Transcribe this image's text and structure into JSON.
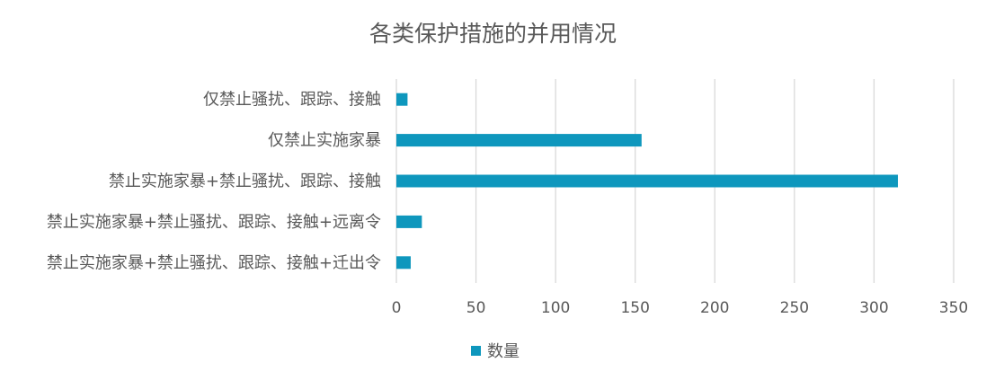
{
  "chart_data": {
    "type": "bar",
    "orientation": "horizontal",
    "title": "各类保护措施的并用情况",
    "categories": [
      "仅禁止骚扰、跟踪、接触",
      "仅禁止实施家暴",
      "禁止实施家暴+禁止骚扰、跟踪、接触",
      "禁止实施家暴+禁止骚扰、跟踪、接触+远离令",
      "禁止实施家暴+禁止骚扰、跟踪、接触+迁出令"
    ],
    "series": [
      {
        "name": "数量",
        "values": [
          7,
          154,
          315,
          16,
          9
        ]
      }
    ],
    "xlim": [
      0,
      350
    ],
    "xticks": [
      0,
      50,
      100,
      150,
      200,
      250,
      300,
      350
    ],
    "grid": true,
    "legend_position": "bottom",
    "bar_color": "#0E97BD",
    "grid_color": "#d9d9d9"
  }
}
